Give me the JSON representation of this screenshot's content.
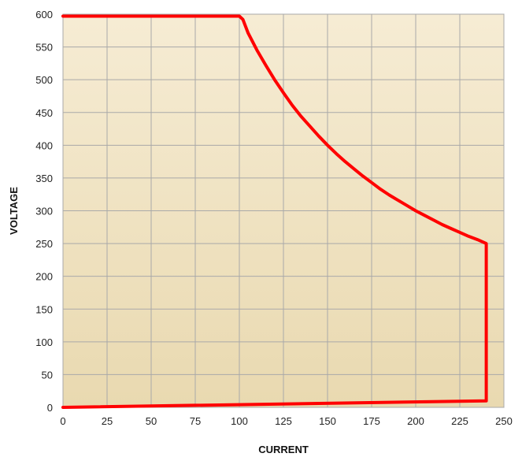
{
  "chart_data": {
    "type": "line",
    "xlabel": "CURRENT",
    "ylabel": "VOLTAGE",
    "xlim": [
      0,
      250
    ],
    "ylim": [
      0,
      600
    ],
    "x_ticks": [
      0,
      25,
      50,
      75,
      100,
      125,
      150,
      175,
      200,
      225,
      250
    ],
    "y_ticks": [
      0,
      50,
      100,
      150,
      200,
      250,
      300,
      350,
      400,
      450,
      500,
      550,
      600
    ],
    "grid": true,
    "background": "#f3e6c6",
    "series": [
      {
        "color": "#ff0000",
        "points": [
          [
            0,
            597
          ],
          [
            100,
            597
          ],
          [
            102,
            592
          ],
          [
            105,
            571
          ],
          [
            110,
            545
          ],
          [
            115,
            522
          ],
          [
            120,
            500
          ],
          [
            125,
            480
          ],
          [
            130,
            461
          ],
          [
            135,
            444
          ],
          [
            140,
            429
          ],
          [
            145,
            414
          ],
          [
            150,
            400
          ],
          [
            155,
            387
          ],
          [
            160,
            375
          ],
          [
            165,
            364
          ],
          [
            170,
            353
          ],
          [
            175,
            343
          ],
          [
            180,
            333
          ],
          [
            185,
            324
          ],
          [
            190,
            316
          ],
          [
            195,
            308
          ],
          [
            200,
            300
          ],
          [
            205,
            293
          ],
          [
            210,
            286
          ],
          [
            215,
            279
          ],
          [
            220,
            273
          ],
          [
            225,
            267
          ],
          [
            230,
            261
          ],
          [
            235,
            256
          ],
          [
            240,
            250
          ],
          [
            240,
            10
          ],
          [
            0,
            0
          ]
        ]
      }
    ]
  }
}
